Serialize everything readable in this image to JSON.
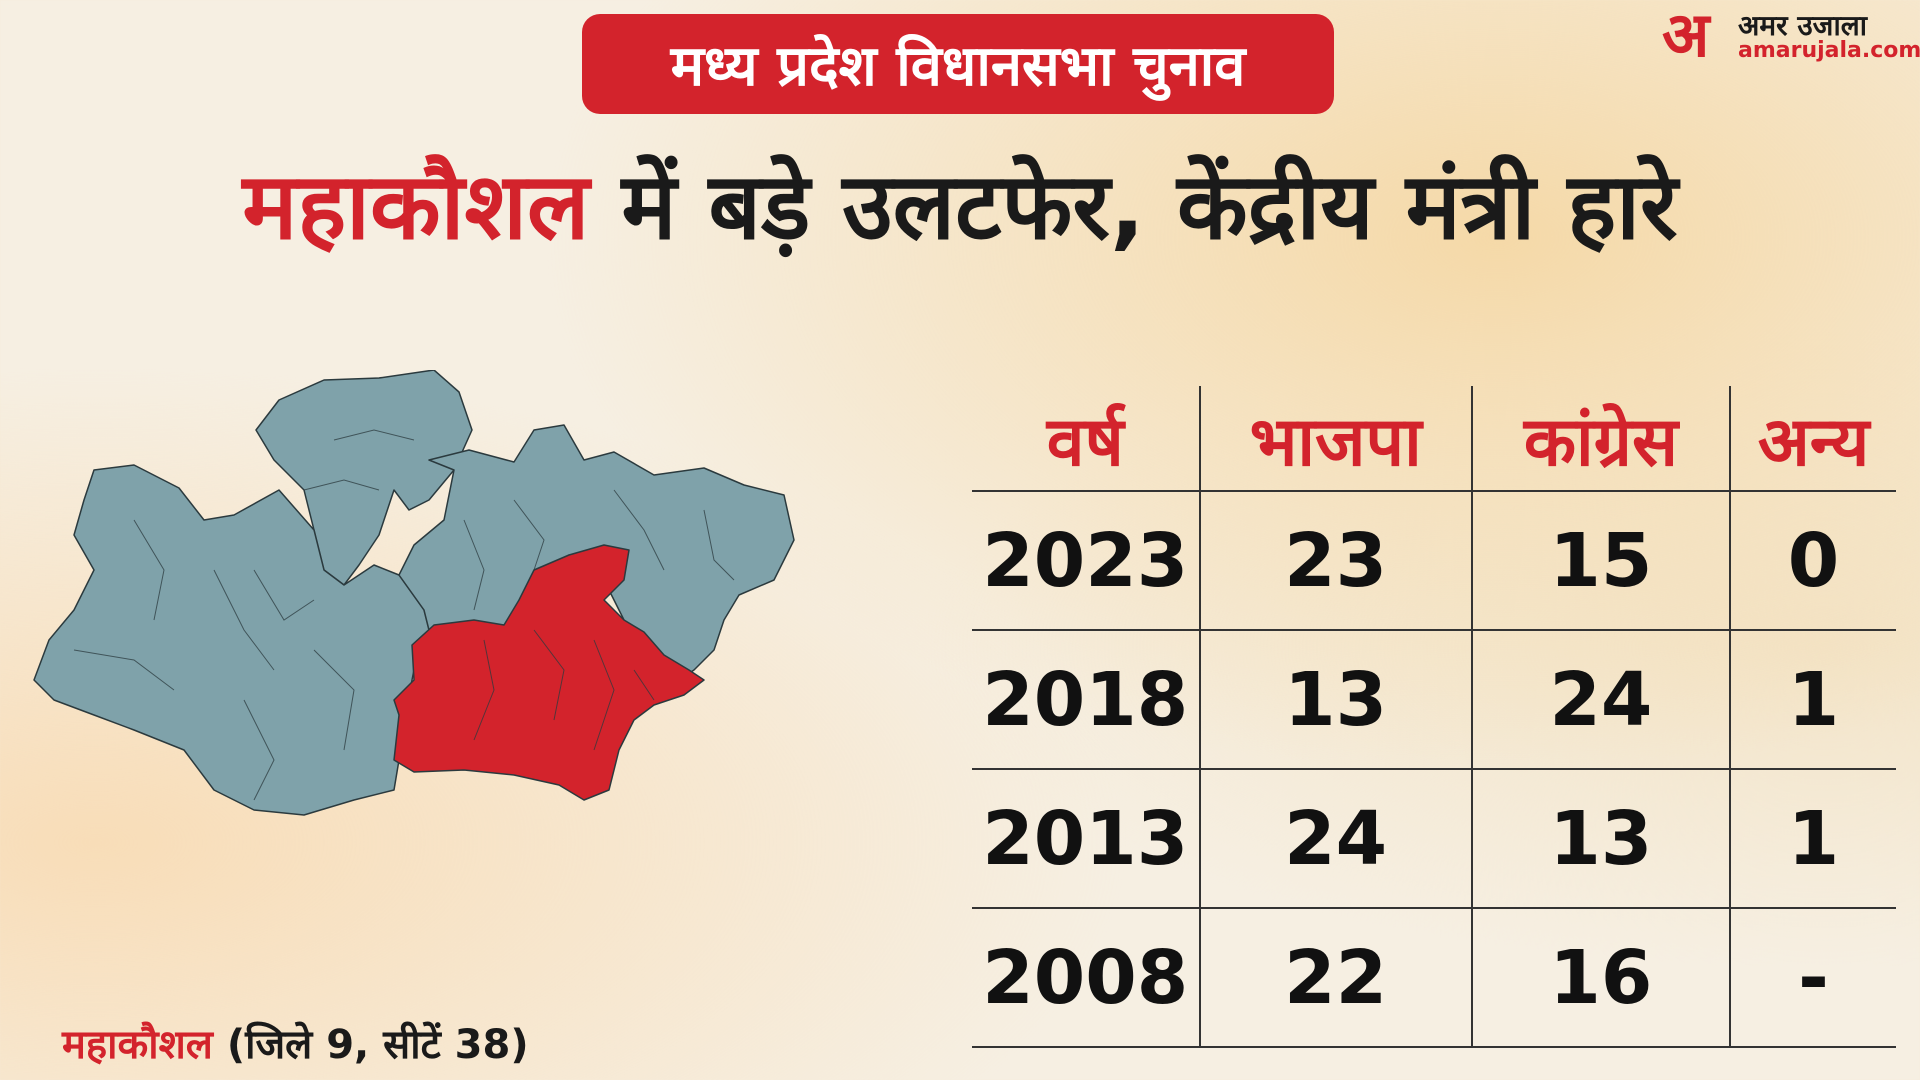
{
  "banner": "मध्य प्रदेश विधानसभा चुनाव",
  "logo": {
    "mark": "अ",
    "hindi": "अमर उजाला",
    "domain": "amarujala.com"
  },
  "headline": {
    "accent": "महाकौशल",
    "rest": " में बड़े उलटफेर, केंद्रीय मंत्री हारे"
  },
  "caption": {
    "accent": "महाकौशल",
    "rest": " (जिले 9, सीटें 38)"
  },
  "colors": {
    "accent": "#d3232c",
    "map_base": "#7fa2aa",
    "map_highlight": "#d3232c"
  },
  "chart_data": {
    "type": "table",
    "columns": [
      "वर्ष",
      "भाजपा",
      "कांग्रेस",
      "अन्य"
    ],
    "rows": [
      [
        "2023",
        "23",
        "15",
        "0"
      ],
      [
        "2018",
        "13",
        "24",
        "1"
      ],
      [
        "2013",
        "24",
        "13",
        "1"
      ],
      [
        "2008",
        "22",
        "16",
        "-"
      ]
    ]
  }
}
